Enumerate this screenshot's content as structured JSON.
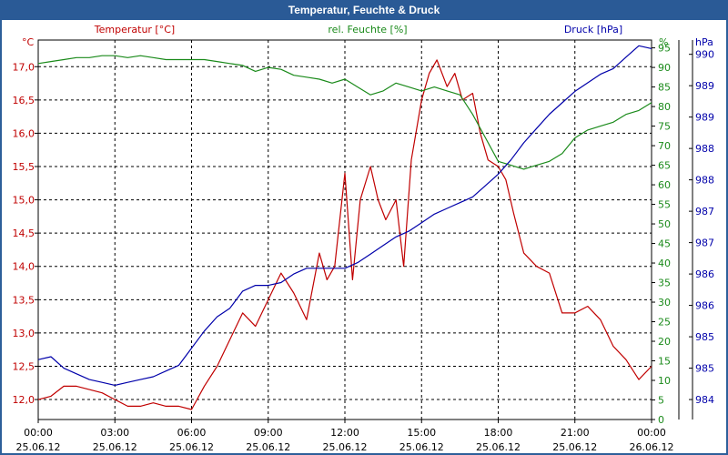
{
  "window": {
    "title": "Temperatur, Feuchte & Druck"
  },
  "colors": {
    "temp": "#c00000",
    "hum": "#1a8a1a",
    "press": "#0000aa",
    "grid": "#000000",
    "axis": "#000000"
  },
  "chart_data": {
    "type": "line",
    "title": "Temperatur, Feuchte & Druck",
    "legend": [
      "Temperatur [°C]",
      "rel. Feuchte [%]",
      "Druck [hPa]"
    ],
    "units": {
      "left": "°C",
      "right1": "%",
      "right2": "hPa"
    },
    "x_ticks": [
      {
        "time": "00:00",
        "date": "25.06.12"
      },
      {
        "time": "03:00",
        "date": "25.06.12"
      },
      {
        "time": "06:00",
        "date": "25.06.12"
      },
      {
        "time": "09:00",
        "date": "25.06.12"
      },
      {
        "time": "12:00",
        "date": "25.06.12"
      },
      {
        "time": "15:00",
        "date": "25.06.12"
      },
      {
        "time": "18:00",
        "date": "25.06.12"
      },
      {
        "time": "21:00",
        "date": "25.06.12"
      },
      {
        "time": "00:00",
        "date": "26.06.12"
      }
    ],
    "x_range_hours": [
      0,
      24
    ],
    "left_axis": {
      "label": "Temperatur [°C]",
      "min": 11.7,
      "max": 17.4,
      "ticks": [
        "12,0",
        "12,5",
        "13,0",
        "13,5",
        "14,0",
        "14,5",
        "15,0",
        "15,5",
        "16,0",
        "16,5",
        "17,0"
      ],
      "tick_values": [
        12.0,
        12.5,
        13.0,
        13.5,
        14.0,
        14.5,
        15.0,
        15.5,
        16.0,
        16.5,
        17.0
      ]
    },
    "right1_axis": {
      "label": "rel. Feuchte [%]",
      "min": 0,
      "max": 97,
      "ticks": [
        "0",
        "5",
        "10",
        "15",
        "20",
        "25",
        "30",
        "35",
        "40",
        "45",
        "50",
        "55",
        "60",
        "65",
        "70",
        "75",
        "80",
        "85",
        "90",
        "95"
      ],
      "tick_values": [
        0,
        5,
        10,
        15,
        20,
        25,
        30,
        35,
        40,
        45,
        50,
        55,
        60,
        65,
        70,
        75,
        80,
        85,
        90,
        95
      ]
    },
    "right2_axis": {
      "label": "Druck [hPa]",
      "min": 983.65,
      "max": 990.3,
      "ticks": [
        "984",
        "985",
        "985",
        "986",
        "986",
        "987",
        "987",
        "988",
        "988",
        "989",
        "989",
        "990"
      ],
      "tick_values": [
        984.0,
        984.55,
        985.1,
        985.65,
        986.2,
        986.75,
        987.3,
        987.85,
        988.4,
        988.95,
        989.5,
        990.05
      ]
    },
    "series": [
      {
        "name": "Temperatur [°C]",
        "axis": "left",
        "color": "#c00000",
        "x": [
          0,
          0.5,
          1,
          1.5,
          2,
          2.5,
          3,
          3.5,
          4,
          4.5,
          5,
          5.5,
          6,
          6.5,
          7,
          7.5,
          8,
          8.5,
          9,
          9.5,
          10,
          10.5,
          11,
          11.3,
          11.6,
          12,
          12.3,
          12.6,
          13,
          13.3,
          13.6,
          14,
          14.3,
          14.6,
          15,
          15.3,
          15.6,
          16,
          16.3,
          16.6,
          17,
          17.3,
          17.6,
          18,
          18.3,
          18.6,
          19,
          19.5,
          20,
          20.5,
          21,
          21.5,
          22,
          22.5,
          23,
          23.5,
          24
        ],
        "y": [
          12.0,
          12.05,
          12.2,
          12.2,
          12.15,
          12.1,
          12.0,
          11.9,
          11.9,
          11.95,
          11.9,
          11.9,
          11.85,
          12.2,
          12.5,
          12.9,
          13.3,
          13.1,
          13.5,
          13.9,
          13.6,
          13.2,
          14.2,
          13.8,
          14.0,
          15.4,
          13.8,
          15.0,
          15.5,
          15.0,
          14.7,
          15.0,
          14.0,
          15.6,
          16.5,
          16.9,
          17.1,
          16.7,
          16.9,
          16.5,
          16.6,
          16.0,
          15.6,
          15.5,
          15.3,
          14.8,
          14.2,
          14.0,
          13.9,
          13.3,
          13.3,
          13.4,
          13.2,
          12.8,
          12.6,
          12.3,
          12.5
        ]
      },
      {
        "name": "rel. Feuchte [%]",
        "axis": "right1",
        "color": "#1a8a1a",
        "x": [
          0,
          0.5,
          1,
          1.5,
          2,
          2.5,
          3,
          3.5,
          4,
          4.5,
          5,
          5.5,
          6,
          6.5,
          7,
          7.5,
          8,
          8.5,
          9,
          9.5,
          10,
          10.5,
          11,
          11.5,
          12,
          12.5,
          13,
          13.5,
          14,
          14.5,
          15,
          15.5,
          16,
          16.5,
          17,
          17.5,
          18,
          18.5,
          19,
          19.5,
          20,
          20.5,
          21,
          21.5,
          22,
          22.5,
          23,
          23.5,
          24
        ],
        "y": [
          91,
          91.5,
          92,
          92.5,
          92.5,
          93,
          93,
          92.5,
          93,
          92.5,
          92,
          92,
          92,
          92,
          91.5,
          91,
          90.5,
          89,
          90,
          89.5,
          88,
          87.5,
          87,
          86,
          87,
          85,
          83,
          84,
          86,
          85,
          84,
          85,
          84,
          83,
          78,
          72,
          66,
          65,
          64,
          65,
          66,
          68,
          72,
          74,
          75,
          76,
          78,
          79,
          81
        ]
      },
      {
        "name": "Druck [hPa]",
        "axis": "right2",
        "color": "#0000aa",
        "x": [
          0,
          0.5,
          1,
          1.5,
          2,
          2.5,
          3,
          3.5,
          4,
          4.5,
          5,
          5.5,
          6,
          6.5,
          7,
          7.5,
          8,
          8.5,
          9,
          9.5,
          10,
          10.5,
          11,
          11.5,
          12,
          12.5,
          13,
          13.5,
          14,
          14.5,
          15,
          15.5,
          16,
          16.5,
          17,
          17.5,
          18,
          18.5,
          19,
          19.5,
          20,
          20.5,
          21,
          21.5,
          22,
          22.5,
          23,
          23.5,
          24
        ],
        "y": [
          984.7,
          984.75,
          984.55,
          984.45,
          984.35,
          984.3,
          984.25,
          984.3,
          984.35,
          984.4,
          984.5,
          984.6,
          984.9,
          985.2,
          985.45,
          985.6,
          985.9,
          986.0,
          986.0,
          986.05,
          986.2,
          986.3,
          986.3,
          986.3,
          986.3,
          986.4,
          986.55,
          986.7,
          986.85,
          986.95,
          987.1,
          987.25,
          987.35,
          987.45,
          987.55,
          987.75,
          987.95,
          988.2,
          988.5,
          988.75,
          989.0,
          989.2,
          989.4,
          989.55,
          989.7,
          989.8,
          990.0,
          990.2,
          990.15
        ]
      }
    ]
  }
}
